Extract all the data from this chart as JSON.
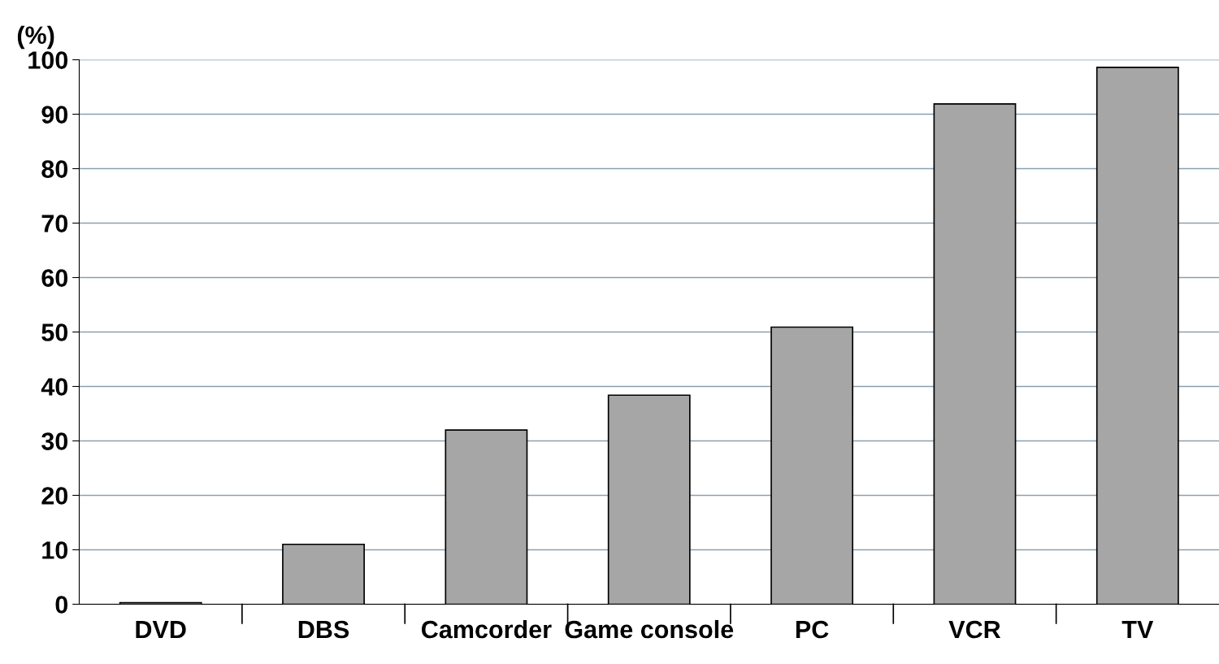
{
  "chart_data": {
    "type": "bar",
    "ylabel": "(%)",
    "categories": [
      "DVD",
      "DBS",
      "Camcorder",
      "Game console",
      "PC",
      "VCR",
      "TV"
    ],
    "values": [
      0.3,
      11.0,
      32.0,
      38.4,
      50.9,
      91.9,
      98.6
    ],
    "color": "#a6a6a6",
    "ylim": [
      0,
      100
    ],
    "yticks": [
      0,
      10,
      20,
      30,
      40,
      50,
      60,
      70,
      80,
      90,
      100
    ],
    "grid": "y"
  }
}
